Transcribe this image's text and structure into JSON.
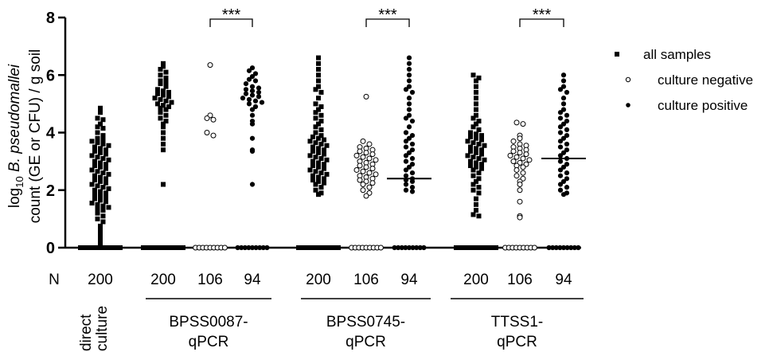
{
  "chart_data": {
    "type": "scatter",
    "subtype": "dot-plot",
    "ylabel_parts": [
      "log",
      "10",
      " B. pseudomallei",
      "count (GE or CFU) / g soil"
    ],
    "ylim": [
      0,
      8
    ],
    "yticks": [
      0,
      2,
      4,
      6,
      8
    ],
    "n_prefix": "N",
    "columns": [
      {
        "id": "direct",
        "marker": "square",
        "n": "200"
      },
      {
        "id": "p87_all",
        "marker": "square",
        "n": "200"
      },
      {
        "id": "p87_neg",
        "marker": "open-circle",
        "n": "106"
      },
      {
        "id": "p87_pos",
        "marker": "filled-circle",
        "n": "94"
      },
      {
        "id": "p745_all",
        "marker": "square",
        "n": "200"
      },
      {
        "id": "p745_neg",
        "marker": "open-circle",
        "n": "106"
      },
      {
        "id": "p745_pos",
        "marker": "filled-circle",
        "n": "94"
      },
      {
        "id": "ttss_all",
        "marker": "square",
        "n": "200"
      },
      {
        "id": "ttss_neg",
        "marker": "open-circle",
        "n": "106"
      },
      {
        "id": "ttss_pos",
        "marker": "filled-circle",
        "n": "94"
      }
    ],
    "group_labels": [
      {
        "lines": [
          "direct",
          "culture"
        ],
        "rotated": true
      },
      {
        "lines": [
          "BPSS0087-",
          "qPCR"
        ]
      },
      {
        "lines": [
          "BPSS0745-",
          "qPCR"
        ]
      },
      {
        "lines": [
          "TTSS1-",
          "qPCR"
        ]
      }
    ],
    "significance": [
      {
        "from": "p87_neg",
        "to": "p87_pos",
        "label": "***"
      },
      {
        "from": "p745_neg",
        "to": "p745_pos",
        "label": "***"
      },
      {
        "from": "ttss_neg",
        "to": "ttss_pos",
        "label": "***"
      }
    ],
    "medians": [
      {
        "column": "p745_pos",
        "value": 2.4
      },
      {
        "column": "ttss_pos",
        "value": 3.1
      }
    ],
    "legend": [
      {
        "marker": "square",
        "label": "all samples"
      },
      {
        "marker": "open-circle",
        "label": "culture negative"
      },
      {
        "marker": "filled-circle",
        "label": "culture positive"
      }
    ],
    "legend_position": "top-right",
    "values_nonzero": {
      "direct": [
        4.85,
        4.7,
        4.5,
        4.45,
        4.3,
        4.2,
        4.15,
        4.0,
        3.9,
        3.8,
        3.75,
        3.7,
        3.65,
        3.6,
        3.55,
        3.5,
        3.45,
        3.4,
        3.35,
        3.3,
        3.25,
        3.2,
        3.15,
        3.1,
        3.05,
        3.0,
        2.95,
        2.9,
        2.85,
        2.8,
        2.75,
        2.7,
        2.65,
        2.6,
        2.55,
        2.5,
        2.45,
        2.4,
        2.35,
        2.3,
        2.25,
        2.2,
        2.15,
        2.1,
        2.05,
        2.0,
        1.95,
        1.9,
        1.85,
        1.8,
        1.75,
        1.7,
        1.65,
        1.6,
        1.55,
        1.5,
        1.45,
        1.4,
        1.35,
        1.3,
        1.2,
        1.1,
        1.0,
        0.9,
        0.75,
        0.6,
        0.45,
        0.3,
        0.15
      ],
      "p87_all": [
        6.4,
        6.3,
        6.2,
        6.1,
        6.0,
        5.9,
        5.8,
        5.75,
        5.7,
        5.6,
        5.5,
        5.45,
        5.4,
        5.35,
        5.3,
        5.25,
        5.2,
        5.15,
        5.1,
        5.05,
        5.0,
        4.95,
        4.9,
        4.85,
        4.8,
        4.7,
        4.6,
        4.5,
        4.4,
        4.3,
        4.2,
        4.0,
        3.8,
        3.6,
        3.4,
        2.2
      ],
      "p87_neg": [
        6.35,
        4.6,
        4.5,
        4.45,
        4.0,
        3.9
      ],
      "p87_pos": [
        6.25,
        6.15,
        6.05,
        5.95,
        5.85,
        5.8,
        5.7,
        5.6,
        5.55,
        5.5,
        5.45,
        5.4,
        5.35,
        5.3,
        5.25,
        5.2,
        5.15,
        5.1,
        5.05,
        5.0,
        4.9,
        4.8,
        4.6,
        4.4,
        4.3,
        3.8,
        3.4,
        3.35,
        2.2
      ],
      "p745_all": [
        6.6,
        6.4,
        6.2,
        6.0,
        5.8,
        5.6,
        5.5,
        5.4,
        5.2,
        5.0,
        4.9,
        4.8,
        4.7,
        4.6,
        4.5,
        4.4,
        4.3,
        4.2,
        4.1,
        4.0,
        3.9,
        3.85,
        3.8,
        3.75,
        3.7,
        3.65,
        3.6,
        3.55,
        3.5,
        3.45,
        3.4,
        3.35,
        3.3,
        3.25,
        3.2,
        3.15,
        3.1,
        3.05,
        3.0,
        2.95,
        2.9,
        2.85,
        2.8,
        2.75,
        2.7,
        2.65,
        2.6,
        2.55,
        2.5,
        2.45,
        2.4,
        2.35,
        2.3,
        2.25,
        2.2,
        2.1,
        2.0,
        1.9,
        1.85
      ],
      "p745_neg": [
        5.25,
        3.7,
        3.6,
        3.5,
        3.45,
        3.4,
        3.35,
        3.3,
        3.25,
        3.2,
        3.15,
        3.1,
        3.05,
        3.0,
        2.95,
        2.9,
        2.85,
        2.8,
        2.75,
        2.7,
        2.65,
        2.6,
        2.55,
        2.5,
        2.45,
        2.4,
        2.35,
        2.3,
        2.25,
        2.2,
        2.1,
        2.0,
        1.9,
        1.8
      ],
      "p745_pos": [
        6.6,
        6.4,
        6.2,
        6.0,
        5.8,
        5.6,
        5.5,
        5.4,
        5.2,
        5.0,
        4.8,
        4.6,
        4.5,
        4.4,
        4.2,
        4.0,
        3.9,
        3.8,
        3.7,
        3.6,
        3.5,
        3.4,
        3.3,
        3.2,
        3.1,
        3.0,
        2.9,
        2.8,
        2.7,
        2.6,
        2.5,
        2.4,
        2.35,
        2.3,
        2.2,
        2.1,
        2.0,
        1.95
      ],
      "ttss_all": [
        6.0,
        5.9,
        5.8,
        5.6,
        5.4,
        5.2,
        5.0,
        4.8,
        4.6,
        4.5,
        4.4,
        4.3,
        4.2,
        4.1,
        4.0,
        3.95,
        3.9,
        3.85,
        3.8,
        3.75,
        3.7,
        3.65,
        3.6,
        3.55,
        3.5,
        3.45,
        3.4,
        3.35,
        3.3,
        3.25,
        3.2,
        3.15,
        3.1,
        3.05,
        3.0,
        2.95,
        2.9,
        2.85,
        2.8,
        2.75,
        2.7,
        2.6,
        2.5,
        2.4,
        2.3,
        2.2,
        2.1,
        2.0,
        1.9,
        1.7,
        1.5,
        1.3,
        1.15,
        1.1
      ],
      "ttss_neg": [
        4.35,
        4.3,
        3.9,
        3.8,
        3.7,
        3.6,
        3.55,
        3.5,
        3.45,
        3.4,
        3.35,
        3.3,
        3.25,
        3.2,
        3.15,
        3.1,
        3.05,
        3.0,
        2.95,
        2.9,
        2.85,
        2.8,
        2.7,
        2.6,
        2.5,
        2.4,
        2.3,
        2.2,
        2.0,
        1.6,
        1.1,
        1.05
      ],
      "ttss_pos": [
        6.0,
        5.8,
        5.6,
        5.5,
        5.4,
        5.2,
        5.0,
        4.8,
        4.7,
        4.6,
        4.5,
        4.4,
        4.3,
        4.2,
        4.1,
        4.0,
        3.9,
        3.8,
        3.7,
        3.6,
        3.5,
        3.4,
        3.3,
        3.2,
        3.1,
        3.0,
        2.9,
        2.8,
        2.7,
        2.6,
        2.5,
        2.4,
        2.3,
        2.2,
        2.1,
        2.0,
        1.9,
        1.85
      ]
    },
    "zero_count": {
      "direct": 11,
      "p87_all": 11,
      "p87_neg": 9,
      "p87_pos": 9,
      "p745_all": 11,
      "p745_neg": 9,
      "p745_pos": 9,
      "ttss_all": 11,
      "ttss_neg": 9,
      "ttss_pos": 9
    }
  }
}
